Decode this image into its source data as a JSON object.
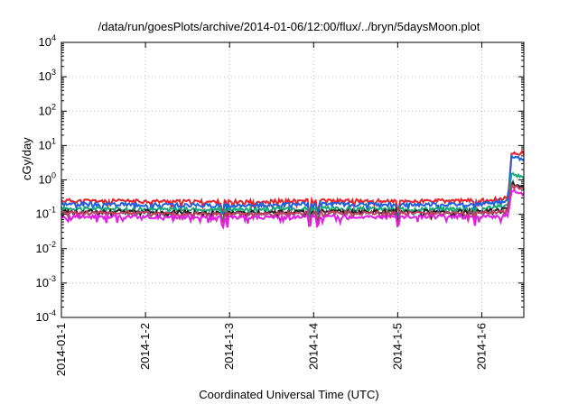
{
  "chart_data": {
    "type": "line",
    "title": "/data/run/goesPlots/archive/2014-01-06/12:00/flux/../bryn/5daysMoon.plot",
    "xlabel": "Coordinated Universal Time (UTC)",
    "ylabel": "cGy/day",
    "y_scale": "log",
    "ylim": [
      0.0001,
      10000
    ],
    "xlim": [
      "2014-01-01",
      "2014-01-06 12:00"
    ],
    "grid": true,
    "legend": "none",
    "y_ticks": [
      "10-4",
      "10-3",
      "10-2",
      "10-1",
      "100",
      "101",
      "102",
      "103",
      "104"
    ],
    "x_ticks": [
      "2014-01-1",
      "2014-1-2",
      "2014-1-3",
      "2014-1-4",
      "2014-1-5",
      "2014-1-6"
    ],
    "x": [
      "2014-01-01",
      "2014-01-02",
      "2014-01-03",
      "2014-01-04",
      "2014-01-05",
      "2014-01-06",
      "2014-01-06 07:30",
      "2014-01-06 08:30",
      "2014-01-06 12:00"
    ],
    "series": [
      {
        "color": "#e8222a",
        "values": [
          0.25,
          0.24,
          0.23,
          0.25,
          0.24,
          0.25,
          0.3,
          6.0,
          6.0
        ]
      },
      {
        "color": "#1f5fe0",
        "values": [
          0.2,
          0.19,
          0.18,
          0.2,
          0.19,
          0.2,
          0.25,
          4.5,
          4.0
        ]
      },
      {
        "color": "#1aa878",
        "values": [
          0.15,
          0.14,
          0.14,
          0.15,
          0.14,
          0.15,
          0.18,
          1.5,
          1.2
        ]
      },
      {
        "color": "#222222",
        "values": [
          0.12,
          0.12,
          0.11,
          0.12,
          0.12,
          0.12,
          0.14,
          0.8,
          0.6
        ]
      },
      {
        "color": "#c04060",
        "values": [
          0.11,
          0.11,
          0.1,
          0.11,
          0.11,
          0.11,
          0.12,
          0.7,
          0.5
        ]
      },
      {
        "color": "#e020e0",
        "values": [
          0.085,
          0.085,
          0.08,
          0.085,
          0.085,
          0.085,
          0.09,
          0.5,
          0.38
        ]
      }
    ]
  }
}
